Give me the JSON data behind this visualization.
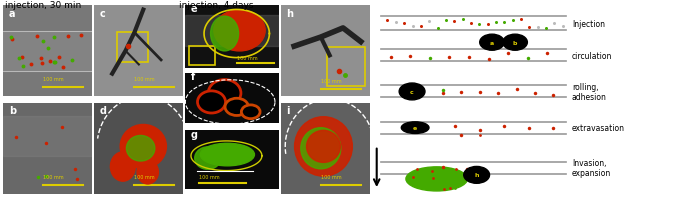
{
  "title_left": "injection, 30 min",
  "title_center": "injection, 4 days",
  "labels": {
    "injection": "Injection",
    "circulation": "circulation",
    "rolling_1": "rolling,",
    "rolling_2": "adhesion",
    "extravasation": "extravasation",
    "invasion_1": "Invasion,",
    "invasion_2": "expansion"
  },
  "red_color": "#cc2200",
  "green_color": "#44aa00",
  "gray_color": "#aaaaaa",
  "yellow_color": "#ddcc00",
  "black_color": "#111111",
  "scale_bar_color": "#ddcc00",
  "fig_width": 6.84,
  "fig_height": 2.01,
  "panel_a_bg": "#787878",
  "panel_b_bg": "#686868",
  "panel_c_bg": "#909090",
  "panel_d_bg": "#505050",
  "panel_efg_bg": "#111111",
  "panel_h_bg": "#909090",
  "panel_i_bg": "#606060",
  "diag_bg": "#ffffff",
  "vessel_color": "#999999",
  "vessel_lw": 1.2
}
